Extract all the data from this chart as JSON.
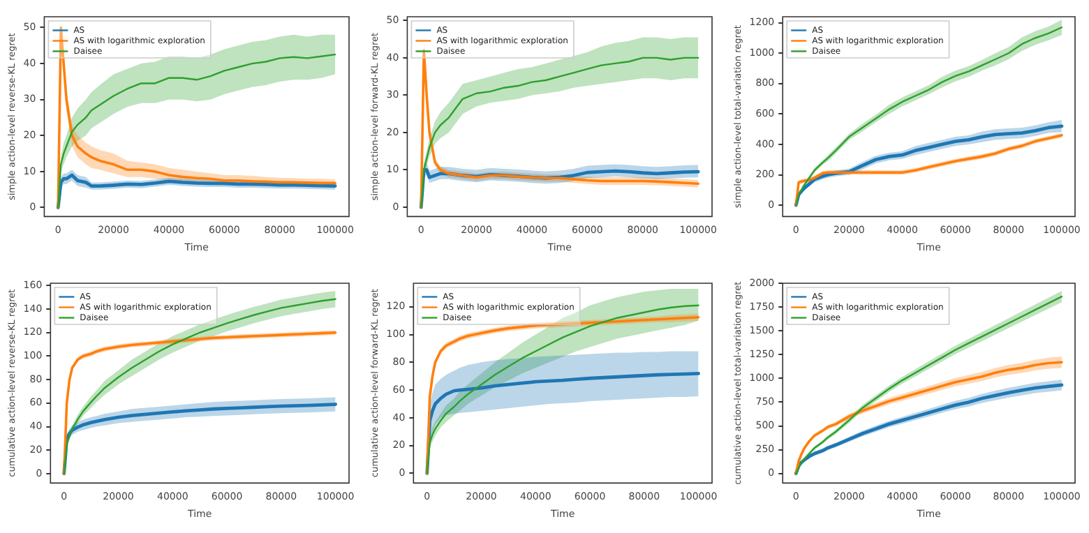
{
  "chart_data": [
    {
      "type": "line",
      "xlabel": "Time",
      "ylabel": "simple action-level reverse-KL regret",
      "legend": "top left",
      "marker": "none",
      "line_style": "solid",
      "xlim": [
        -5000,
        105000
      ],
      "xticks": [
        0,
        20000,
        40000,
        60000,
        80000,
        100000
      ],
      "ylim": [
        -2.5,
        53
      ],
      "yticks": [
        0,
        10,
        20,
        30,
        40,
        50
      ],
      "x": [
        0,
        1000,
        2000,
        3000,
        5000,
        7000,
        10000,
        12000,
        15000,
        20000,
        25000,
        30000,
        35000,
        40000,
        45000,
        50000,
        55000,
        60000,
        65000,
        70000,
        75000,
        80000,
        85000,
        90000,
        95000,
        100000
      ],
      "series": [
        {
          "name": "AS",
          "color": "#1f77b4",
          "values": [
            0,
            7,
            8,
            8,
            9,
            7.5,
            7,
            6,
            6,
            6.2,
            6.5,
            6.4,
            6.8,
            7.3,
            7,
            6.8,
            6.7,
            6.7,
            6.5,
            6.5,
            6.4,
            6.3,
            6.3,
            6.2,
            6.1,
            6
          ],
          "lower": [
            0,
            5.5,
            6.5,
            6.5,
            7.5,
            6,
            5.5,
            5,
            5,
            5.2,
            5.5,
            5.4,
            5.8,
            6.3,
            6,
            5.8,
            5.7,
            5.7,
            5.5,
            5.5,
            5.4,
            5.3,
            5.3,
            5.2,
            5.1,
            5
          ],
          "upper": [
            0,
            8.5,
            9.5,
            9.5,
            10.5,
            9,
            8.5,
            7,
            7,
            7.2,
            7.5,
            7.4,
            7.8,
            8.3,
            8,
            7.8,
            7.7,
            7.7,
            7.5,
            7.5,
            7.4,
            7.3,
            7.3,
            7.2,
            7.1,
            7
          ]
        },
        {
          "name": "AS with logarithmic exploration",
          "color": "#ff7f0e",
          "values": [
            0,
            50,
            40,
            30,
            20,
            17,
            15,
            14,
            13,
            12,
            10.5,
            10.5,
            10,
            9,
            8.5,
            8.2,
            8,
            7.5,
            7.5,
            7.3,
            7.2,
            7,
            7,
            6.9,
            6.8,
            6.8
          ],
          "lower": [
            0,
            48,
            37,
            27,
            17,
            14,
            12,
            11,
            10.5,
            9.5,
            8.5,
            8.5,
            8,
            7.5,
            7,
            6.8,
            6.6,
            6.2,
            6.2,
            6,
            6,
            5.8,
            5.8,
            5.7,
            5.6,
            5.6
          ],
          "upper": [
            0,
            52,
            43,
            33,
            23,
            20,
            18,
            17,
            16,
            15,
            13,
            12.5,
            12,
            11,
            10.5,
            10,
            9.5,
            9,
            9,
            8.8,
            8.5,
            8.3,
            8.2,
            8,
            8,
            7.8
          ]
        },
        {
          "name": "Daisee",
          "color": "#2ca02c",
          "values": [
            0,
            12,
            15,
            17,
            21,
            23,
            25,
            27,
            28.5,
            31,
            33,
            34.5,
            34.5,
            36,
            36,
            35.5,
            36.5,
            38,
            39,
            40,
            40.5,
            41.5,
            41.8,
            41.5,
            42,
            42.5
          ],
          "lower": [
            0,
            10,
            12,
            14,
            17,
            18.5,
            20,
            22,
            23.5,
            26,
            28,
            29,
            29,
            30,
            30,
            29.5,
            30,
            31.5,
            32.5,
            33.5,
            34,
            35,
            35.5,
            35.5,
            36,
            37
          ],
          "upper": [
            0,
            14,
            18,
            20,
            25,
            27.5,
            30,
            32,
            34,
            37,
            38.5,
            40,
            40.5,
            42,
            42,
            41.5,
            42.5,
            44,
            45,
            46,
            46.5,
            47.5,
            48,
            47.5,
            48,
            48
          ]
        }
      ]
    },
    {
      "type": "line",
      "xlabel": "Time",
      "ylabel": "simple action-level forward-KL regret",
      "legend": "top left",
      "marker": "none",
      "line_style": "solid",
      "xlim": [
        -5000,
        105000
      ],
      "xticks": [
        0,
        20000,
        40000,
        60000,
        80000,
        100000
      ],
      "ylim": [
        -2.5,
        51
      ],
      "yticks": [
        0,
        10,
        20,
        30,
        40,
        50
      ],
      "x": [
        0,
        1000,
        2000,
        3000,
        5000,
        7000,
        10000,
        12000,
        15000,
        20000,
        25000,
        30000,
        35000,
        40000,
        45000,
        50000,
        55000,
        60000,
        65000,
        70000,
        75000,
        80000,
        85000,
        90000,
        95000,
        100000
      ],
      "series": [
        {
          "name": "AS",
          "color": "#1f77b4",
          "values": [
            0,
            10,
            10,
            8,
            8.5,
            9,
            9,
            8.8,
            8.5,
            8.2,
            8.7,
            8.5,
            8.3,
            8,
            7.8,
            8,
            8.5,
            9.3,
            9.5,
            9.7,
            9.5,
            9.2,
            9,
            9.2,
            9.4,
            9.5
          ],
          "lower": [
            0,
            8.5,
            8.5,
            6.5,
            7,
            7.5,
            7.5,
            7.3,
            7,
            6.7,
            7.2,
            7,
            6.8,
            6.5,
            6.3,
            6.5,
            7,
            7.8,
            8,
            8.2,
            8,
            7.7,
            7.5,
            7.7,
            7.9,
            8
          ],
          "upper": [
            0,
            11.8,
            11.8,
            9.8,
            10.3,
            10.8,
            10.8,
            10.6,
            10.3,
            10,
            10.5,
            10.3,
            10.1,
            9.8,
            9.6,
            9.8,
            10.3,
            11.1,
            11.3,
            11.5,
            11.3,
            11,
            10.8,
            11,
            11.2,
            11.3
          ]
        },
        {
          "name": "AS with logarithmic exploration",
          "color": "#ff7f0e",
          "values": [
            0,
            42,
            30,
            20,
            12,
            10,
            9,
            8.8,
            8.5,
            8,
            8.5,
            8.5,
            8.2,
            8,
            7.8,
            7.8,
            7.5,
            7.2,
            7,
            7,
            7,
            7,
            6.9,
            6.7,
            6.5,
            6.3
          ],
          "lower": [
            0,
            40,
            28,
            18,
            11,
            9,
            8,
            7.8,
            7.5,
            7,
            7.5,
            7.5,
            7.2,
            7,
            6.8,
            6.8,
            6.5,
            6.2,
            6,
            6,
            6,
            6,
            5.9,
            5.7,
            5.5,
            5.3
          ],
          "upper": [
            0,
            44,
            32,
            22,
            13,
            11,
            10,
            9.8,
            9.5,
            9,
            9.5,
            9.5,
            9.2,
            9,
            8.8,
            8.8,
            8.5,
            8.2,
            8,
            8,
            8,
            8,
            7.9,
            7.7,
            7.5,
            7.3
          ]
        },
        {
          "name": "Daisee",
          "color": "#2ca02c",
          "values": [
            0,
            10,
            13,
            16,
            20,
            22,
            24,
            26,
            29,
            30.5,
            31,
            32,
            32.5,
            33.5,
            34,
            35,
            36,
            37,
            38,
            38.5,
            39,
            40,
            40,
            39.5,
            40,
            40
          ],
          "lower": [
            0,
            8,
            11,
            13.5,
            17,
            18.5,
            20,
            22,
            25,
            27,
            28,
            28.5,
            29,
            30,
            30.5,
            31,
            32,
            32.5,
            33,
            33.5,
            34,
            34.5,
            34.5,
            34,
            34.5,
            34.5
          ],
          "upper": [
            0,
            12,
            15,
            18.5,
            23,
            25.5,
            28,
            30,
            33,
            34,
            35,
            36,
            37,
            37.5,
            38.5,
            39.5,
            40.5,
            41.5,
            43,
            44,
            44.5,
            45.5,
            45.5,
            45,
            45.5,
            45.5
          ]
        }
      ]
    },
    {
      "type": "line",
      "xlabel": "Time",
      "ylabel": "simple action-level total-variation regret",
      "legend": "top left",
      "marker": "none",
      "line_style": "solid",
      "xlim": [
        -5000,
        105000
      ],
      "xticks": [
        0,
        20000,
        40000,
        60000,
        80000,
        100000
      ],
      "ylim": [
        -75,
        1240
      ],
      "yticks": [
        0,
        200,
        400,
        600,
        800,
        1000,
        1200
      ],
      "x": [
        0,
        1000,
        2000,
        3000,
        5000,
        7000,
        10000,
        12000,
        15000,
        20000,
        25000,
        30000,
        35000,
        40000,
        45000,
        50000,
        55000,
        60000,
        65000,
        70000,
        75000,
        80000,
        85000,
        90000,
        95000,
        100000
      ],
      "series": [
        {
          "name": "AS",
          "color": "#1f77b4",
          "values": [
            0,
            70,
            90,
            110,
            140,
            170,
            190,
            200,
            210,
            220,
            260,
            300,
            320,
            330,
            360,
            380,
            400,
            420,
            430,
            450,
            465,
            470,
            475,
            490,
            510,
            520
          ],
          "lower": [
            0,
            55,
            75,
            95,
            125,
            150,
            170,
            180,
            190,
            200,
            235,
            275,
            295,
            305,
            330,
            350,
            370,
            390,
            400,
            415,
            430,
            435,
            440,
            455,
            475,
            480
          ],
          "upper": [
            0,
            85,
            105,
            125,
            155,
            190,
            210,
            220,
            230,
            240,
            285,
            325,
            345,
            355,
            390,
            410,
            430,
            450,
            460,
            485,
            500,
            505,
            510,
            525,
            545,
            560
          ]
        },
        {
          "name": "AS with logarithmic exploration",
          "color": "#ff7f0e",
          "values": [
            0,
            150,
            155,
            160,
            165,
            180,
            210,
            215,
            215,
            215,
            215,
            215,
            215,
            215,
            230,
            250,
            270,
            290,
            305,
            320,
            340,
            370,
            390,
            420,
            440,
            460
          ],
          "lower": [
            0,
            135,
            140,
            145,
            150,
            165,
            195,
            200,
            200,
            200,
            200,
            200,
            200,
            200,
            215,
            235,
            255,
            275,
            290,
            305,
            325,
            355,
            375,
            405,
            425,
            445
          ],
          "upper": [
            0,
            165,
            170,
            175,
            180,
            195,
            225,
            230,
            230,
            230,
            230,
            230,
            230,
            230,
            245,
            265,
            285,
            305,
            320,
            335,
            355,
            385,
            405,
            435,
            455,
            475
          ]
        },
        {
          "name": "Daisee",
          "color": "#2ca02c",
          "values": [
            0,
            70,
            100,
            130,
            180,
            230,
            280,
            310,
            360,
            450,
            510,
            570,
            630,
            680,
            720,
            760,
            810,
            850,
            880,
            920,
            960,
            1000,
            1060,
            1100,
            1130,
            1170
          ],
          "lower": [
            0,
            60,
            90,
            120,
            165,
            215,
            265,
            290,
            340,
            430,
            485,
            545,
            600,
            650,
            690,
            730,
            775,
            815,
            845,
            885,
            920,
            960,
            1015,
            1055,
            1085,
            1120
          ],
          "upper": [
            0,
            80,
            110,
            140,
            195,
            245,
            295,
            330,
            380,
            470,
            535,
            595,
            660,
            710,
            750,
            790,
            845,
            885,
            915,
            955,
            1000,
            1040,
            1105,
            1145,
            1175,
            1220
          ]
        }
      ]
    },
    {
      "type": "line",
      "xlabel": "Time",
      "ylabel": "cumulative action-level reverse-KL regret",
      "legend": "top left",
      "marker": "none",
      "line_style": "solid",
      "xlim": [
        -5000,
        105000
      ],
      "xticks": [
        0,
        20000,
        40000,
        60000,
        80000,
        100000
      ],
      "ylim": [
        -8,
        162
      ],
      "yticks": [
        0,
        20,
        40,
        60,
        80,
        100,
        120,
        140,
        160
      ],
      "x": [
        0,
        1000,
        2000,
        3000,
        5000,
        7000,
        10000,
        12000,
        15000,
        20000,
        25000,
        30000,
        35000,
        40000,
        45000,
        50000,
        55000,
        60000,
        65000,
        70000,
        75000,
        80000,
        85000,
        90000,
        95000,
        100000
      ],
      "series": [
        {
          "name": "AS",
          "color": "#1f77b4",
          "values": [
            0,
            30,
            34,
            37,
            39.5,
            41.5,
            43.5,
            44.5,
            46,
            48,
            49.5,
            50.5,
            51.5,
            52.5,
            53.5,
            54.2,
            55,
            55.5,
            56,
            56.5,
            57,
            57.4,
            57.8,
            58.1,
            58.5,
            59
          ],
          "lower": [
            0,
            26,
            30,
            33,
            35.5,
            37,
            39,
            40,
            41,
            43,
            44,
            45,
            46,
            47,
            48,
            48.5,
            49,
            49.5,
            50,
            50.5,
            51,
            51.4,
            51.8,
            52.1,
            52.5,
            53
          ],
          "upper": [
            0,
            34,
            38,
            41,
            43.5,
            46,
            48,
            49,
            51,
            53,
            55,
            56,
            57,
            58,
            59,
            60,
            61,
            61.5,
            62,
            62.5,
            63,
            63.4,
            63.8,
            64.1,
            64.5,
            65
          ]
        },
        {
          "name": "AS with logarithmic exploration",
          "color": "#ff7f0e",
          "values": [
            0,
            60,
            80,
            90,
            97,
            100,
            102,
            104,
            106,
            108,
            109.5,
            110.5,
            111.5,
            112.5,
            113.5,
            114.5,
            115.5,
            116,
            116.5,
            117,
            117.5,
            118,
            118.5,
            119,
            119.5,
            120
          ],
          "lower": [
            0,
            58,
            78,
            88,
            95,
            98,
            100,
            102,
            104,
            106,
            107.5,
            108.5,
            109.5,
            110.5,
            111.5,
            112.5,
            113.5,
            114,
            114.5,
            115,
            115.5,
            116,
            116.5,
            117,
            117.5,
            118
          ],
          "upper": [
            0,
            62,
            82,
            92,
            99,
            102,
            104,
            106,
            108,
            110,
            111.5,
            112.5,
            113.5,
            114.5,
            115.5,
            116.5,
            117.5,
            118,
            118.5,
            119,
            119.5,
            120,
            120.5,
            121,
            121.5,
            122
          ]
        },
        {
          "name": "Daisee",
          "color": "#2ca02c",
          "values": [
            0,
            25,
            32,
            38,
            46,
            53,
            61,
            66,
            73,
            82,
            90,
            97,
            104,
            110,
            115,
            120,
            124,
            128,
            131.5,
            135,
            138,
            141,
            143,
            145,
            147,
            148.5
          ],
          "lower": [
            0,
            22,
            29,
            35,
            42,
            49,
            56,
            61,
            67,
            76,
            83,
            90,
            97,
            103,
            108,
            113,
            117,
            121,
            124.5,
            128,
            131,
            134,
            136,
            138,
            140,
            141.5
          ],
          "upper": [
            0,
            28,
            35,
            41,
            50,
            57,
            66,
            71,
            79,
            88,
            97,
            104,
            111,
            117,
            122,
            127,
            131,
            135,
            138.5,
            142,
            145,
            148,
            150,
            152,
            154,
            155.5
          ]
        }
      ]
    },
    {
      "type": "line",
      "xlabel": "Time",
      "ylabel": "cumulative action-level forward-KL regret",
      "legend": "top left",
      "marker": "none",
      "line_style": "solid",
      "xlim": [
        -5000,
        105000
      ],
      "xticks": [
        0,
        20000,
        40000,
        60000,
        80000,
        100000
      ],
      "ylim": [
        -7,
        137
      ],
      "yticks": [
        0,
        20,
        40,
        60,
        80,
        100,
        120
      ],
      "x": [
        0,
        1000,
        2000,
        3000,
        5000,
        7000,
        10000,
        12000,
        15000,
        20000,
        25000,
        30000,
        35000,
        40000,
        45000,
        50000,
        55000,
        60000,
        65000,
        70000,
        75000,
        80000,
        85000,
        90000,
        95000,
        100000
      ],
      "series": [
        {
          "name": "AS",
          "color": "#1f77b4",
          "values": [
            0,
            38,
            45,
            50,
            54,
            57,
            59.5,
            60,
            60.5,
            61.5,
            63,
            64,
            65,
            66,
            66.5,
            67,
            67.8,
            68.5,
            69,
            69.5,
            70,
            70.5,
            71,
            71.3,
            71.6,
            72
          ],
          "lower": [
            0,
            25,
            30,
            35,
            40,
            42,
            43,
            43.5,
            44,
            45,
            46,
            47,
            48,
            49,
            50,
            50.5,
            51,
            52,
            52.5,
            53,
            53.5,
            54,
            54.5,
            55,
            55,
            55.5
          ],
          "upper": [
            0,
            50,
            58,
            64,
            68,
            71,
            74,
            76,
            78,
            80,
            81.5,
            82.5,
            83,
            84,
            84.5,
            85,
            85.5,
            86,
            86.5,
            87,
            87,
            87.5,
            87.5,
            88,
            88,
            88
          ]
        },
        {
          "name": "AS with logarithmic exploration",
          "color": "#ff7f0e",
          "values": [
            0,
            55,
            70,
            80,
            88,
            92,
            95,
            97,
            99,
            101,
            103,
            104.5,
            105.5,
            106.5,
            107,
            107.5,
            108,
            108.5,
            109,
            109.5,
            110,
            110.5,
            111,
            111.5,
            112,
            112.5
          ],
          "lower": [
            0,
            53,
            68,
            78,
            86,
            90,
            93,
            95,
            97,
            99,
            101,
            102.5,
            103.5,
            104.5,
            105,
            105.5,
            106,
            106.5,
            107,
            107.5,
            108,
            108.5,
            109,
            109,
            109.5,
            110
          ],
          "upper": [
            0,
            57,
            72,
            82,
            90,
            94,
            97,
            99,
            101,
            103,
            105,
            106.5,
            107.5,
            108.5,
            109,
            109.5,
            110,
            110.5,
            111,
            111.5,
            112,
            112.5,
            113,
            114,
            114.5,
            115
          ]
        },
        {
          "name": "Daisee",
          "color": "#2ca02c",
          "values": [
            0,
            22,
            28,
            32,
            38,
            43,
            48,
            52,
            57,
            64,
            71,
            77,
            83,
            88,
            93,
            98,
            102,
            106,
            109,
            112,
            114,
            116,
            118,
            119.5,
            120.5,
            121
          ],
          "lower": [
            0,
            18,
            23,
            27,
            33,
            37,
            42,
            45,
            50,
            56,
            62,
            67,
            72,
            76,
            80,
            84,
            88,
            91,
            94,
            97,
            99,
            101,
            103,
            105,
            107,
            110
          ],
          "upper": [
            0,
            26,
            33,
            37,
            43,
            49,
            54,
            59,
            64,
            72,
            80,
            87,
            94,
            100,
            106,
            112,
            116,
            121,
            124,
            127,
            129,
            131,
            132,
            133,
            133,
            133
          ]
        }
      ]
    },
    {
      "type": "line",
      "xlabel": "Time",
      "ylabel": "cumulative action-level total-variation regret",
      "legend": "top left",
      "marker": "none",
      "line_style": "solid",
      "xlim": [
        -5000,
        105000
      ],
      "xticks": [
        0,
        20000,
        40000,
        60000,
        80000,
        100000
      ],
      "ylim": [
        -100,
        2000
      ],
      "yticks": [
        0,
        250,
        500,
        750,
        1000,
        1250,
        1500,
        1750,
        2000
      ],
      "x": [
        0,
        1000,
        2000,
        3000,
        5000,
        7000,
        10000,
        12000,
        15000,
        20000,
        25000,
        30000,
        35000,
        40000,
        45000,
        50000,
        55000,
        60000,
        65000,
        70000,
        75000,
        80000,
        85000,
        90000,
        95000,
        100000
      ],
      "series": [
        {
          "name": "AS",
          "color": "#1f77b4",
          "values": [
            0,
            80,
            115,
            140,
            180,
            210,
            240,
            270,
            300,
            360,
            420,
            470,
            520,
            560,
            600,
            640,
            680,
            720,
            750,
            790,
            820,
            850,
            875,
            900,
            915,
            930
          ],
          "lower": [
            0,
            70,
            105,
            128,
            165,
            193,
            220,
            248,
            276,
            333,
            390,
            438,
            486,
            524,
            562,
            600,
            638,
            676,
            704,
            742,
            770,
            798,
            822,
            846,
            860,
            874
          ],
          "upper": [
            0,
            90,
            125,
            152,
            195,
            227,
            260,
            292,
            324,
            387,
            450,
            502,
            554,
            596,
            638,
            680,
            722,
            764,
            796,
            838,
            870,
            902,
            928,
            954,
            970,
            986
          ]
        },
        {
          "name": "AS with logarithmic exploration",
          "color": "#ff7f0e",
          "values": [
            0,
            130,
            200,
            260,
            340,
            400,
            450,
            490,
            520,
            600,
            660,
            710,
            760,
            800,
            840,
            880,
            920,
            960,
            990,
            1020,
            1060,
            1090,
            1110,
            1140,
            1160,
            1170
          ],
          "lower": [
            0,
            120,
            188,
            246,
            324,
            382,
            430,
            468,
            496,
            572,
            630,
            678,
            726,
            764,
            802,
            840,
            878,
            916,
            944,
            972,
            1010,
            1038,
            1056,
            1084,
            1102,
            1110
          ],
          "upper": [
            0,
            140,
            212,
            274,
            356,
            418,
            470,
            512,
            544,
            628,
            690,
            742,
            794,
            836,
            878,
            920,
            962,
            1004,
            1036,
            1068,
            1110,
            1142,
            1164,
            1196,
            1218,
            1230
          ]
        },
        {
          "name": "Daisee",
          "color": "#2ca02c",
          "values": [
            0,
            60,
            110,
            150,
            210,
            270,
            330,
            380,
            440,
            560,
            690,
            790,
            890,
            980,
            1060,
            1140,
            1220,
            1300,
            1370,
            1440,
            1510,
            1580,
            1650,
            1720,
            1790,
            1860
          ],
          "lower": [
            0,
            50,
            98,
            136,
            194,
            252,
            310,
            358,
            416,
            532,
            660,
            758,
            856,
            944,
            1022,
            1100,
            1178,
            1256,
            1324,
            1392,
            1460,
            1528,
            1596,
            1664,
            1732,
            1800
          ],
          "upper": [
            0,
            70,
            122,
            164,
            226,
            288,
            350,
            402,
            464,
            588,
            720,
            822,
            924,
            1016,
            1098,
            1180,
            1262,
            1344,
            1416,
            1488,
            1560,
            1632,
            1704,
            1776,
            1848,
            1920
          ]
        }
      ]
    }
  ]
}
